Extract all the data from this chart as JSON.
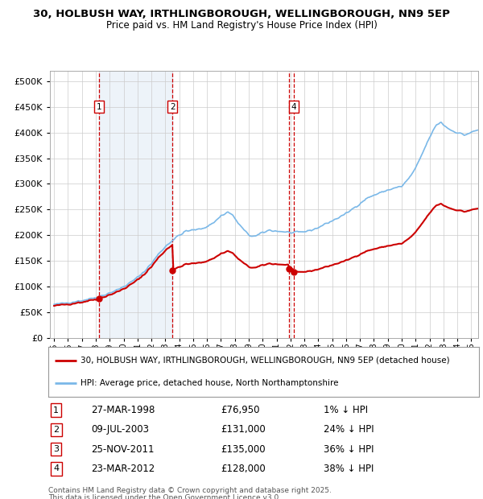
{
  "title_line1": "30, HOLBUSH WAY, IRTHLINGBOROUGH, WELLINGBOROUGH, NN9 5EP",
  "title_line2": "Price paid vs. HM Land Registry's House Price Index (HPI)",
  "background_color": "#ffffff",
  "plot_bg_color": "#ffffff",
  "grid_color": "#cccccc",
  "hpi_color": "#7ab8e8",
  "price_color": "#cc0000",
  "transactions": [
    {
      "num": 1,
      "date": "27-MAR-1998",
      "price": 76950,
      "pct": "1%",
      "dir": "↓",
      "year_x": 1998.23
    },
    {
      "num": 2,
      "date": "09-JUL-2003",
      "price": 131000,
      "pct": "24%",
      "dir": "↓",
      "year_x": 2003.52
    },
    {
      "num": 3,
      "date": "25-NOV-2011",
      "price": 135000,
      "pct": "36%",
      "dir": "↓",
      "year_x": 2011.9
    },
    {
      "num": 4,
      "date": "23-MAR-2012",
      "price": 128000,
      "pct": "38%",
      "dir": "↓",
      "year_x": 2012.23
    }
  ],
  "shown_in_chart": [
    1,
    2,
    4
  ],
  "legend_line1": "30, HOLBUSH WAY, IRTHLINGBOROUGH, WELLINGBOROUGH, NN9 5EP (detached house)",
  "legend_line2": "HPI: Average price, detached house, North Northamptonshire",
  "footnote1": "Contains HM Land Registry data © Crown copyright and database right 2025.",
  "footnote2": "This data is licensed under the Open Government Licence v3.0.",
  "ylim": [
    0,
    520000
  ],
  "yticks": [
    0,
    50000,
    100000,
    150000,
    200000,
    250000,
    300000,
    350000,
    400000,
    450000,
    500000
  ],
  "xlim": [
    1994.7,
    2025.5
  ],
  "xticks": [
    1995,
    1996,
    1997,
    1998,
    1999,
    2000,
    2001,
    2002,
    2003,
    2004,
    2005,
    2006,
    2007,
    2008,
    2009,
    2010,
    2011,
    2012,
    2013,
    2014,
    2015,
    2016,
    2017,
    2018,
    2019,
    2020,
    2021,
    2022,
    2023,
    2024,
    2025
  ],
  "span_color": "#dce8f5",
  "span_alpha": 0.5
}
